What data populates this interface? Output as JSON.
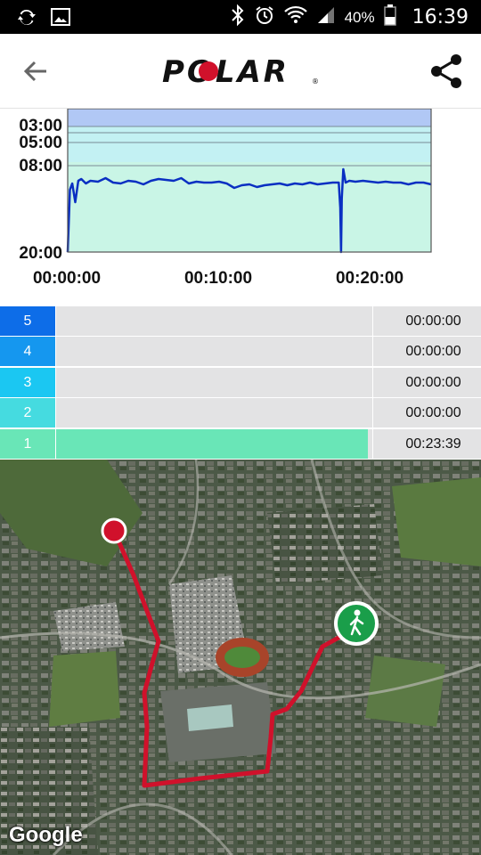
{
  "status_bar": {
    "battery": "40%",
    "time": "16:39",
    "icons": [
      "sync-icon",
      "image-icon",
      "bluetooth-icon",
      "alarm-icon",
      "wifi-icon",
      "signal-icon",
      "battery-icon"
    ]
  },
  "app_bar": {
    "brand": "POLAR",
    "back_icon": "arrow-left-icon",
    "share_icon": "share-icon"
  },
  "chart_data": {
    "type": "line",
    "y_tick_labels": [
      "03:00",
      "05:00",
      "08:00",
      "20:00"
    ],
    "x_tick_labels": [
      "00:00:00",
      "00:10:00",
      "00:20:00"
    ],
    "x_range_minutes": [
      0,
      24
    ],
    "colors": {
      "line": "#0a2fc2",
      "zone_top": "#b1c8f5",
      "zone_mid": "#c3f1f3",
      "zone_low": "#c9f5e6"
    },
    "series": [
      {
        "x_min": [
          0,
          0.15,
          0.3,
          0.5,
          0.7,
          0.9,
          1.2,
          1.5,
          2.0,
          2.5,
          3.0,
          3.5,
          4.0,
          4.5,
          5.0,
          5.5,
          6.0,
          6.5,
          7.0,
          7.5,
          8.0,
          8.5,
          9.0,
          9.5,
          10.0,
          10.5,
          11.0,
          11.5,
          12.0,
          12.5,
          13.0,
          13.5,
          14.0,
          14.5,
          15.0,
          15.5,
          16.0,
          16.5,
          17.0,
          17.5,
          17.9,
          18.0,
          18.05,
          18.1,
          18.2,
          18.35,
          18.6,
          19.0,
          19.5,
          20.0,
          20.5,
          21.0,
          21.5,
          22.0,
          22.5,
          23.0,
          23.5,
          24.0
        ],
        "y_level": [
          0.0,
          0.7,
          0.77,
          0.56,
          0.8,
          0.82,
          0.77,
          0.8,
          0.79,
          0.83,
          0.78,
          0.77,
          0.8,
          0.79,
          0.76,
          0.8,
          0.82,
          0.81,
          0.8,
          0.83,
          0.77,
          0.79,
          0.78,
          0.78,
          0.79,
          0.77,
          0.72,
          0.75,
          0.76,
          0.73,
          0.75,
          0.76,
          0.77,
          0.75,
          0.77,
          0.76,
          0.78,
          0.76,
          0.77,
          0.78,
          0.78,
          0.5,
          0.0,
          0.6,
          0.93,
          0.78,
          0.8,
          0.79,
          0.8,
          0.79,
          0.78,
          0.79,
          0.78,
          0.78,
          0.76,
          0.78,
          0.78,
          0.76
        ]
      }
    ]
  },
  "zones": [
    {
      "label": "5",
      "time": "00:00:00",
      "fill": 0.0,
      "color": "#0d6de8"
    },
    {
      "label": "4",
      "time": "00:00:00",
      "fill": 0.0,
      "color": "#1597ef"
    },
    {
      "label": "3",
      "time": "00:00:00",
      "fill": 0.0,
      "color": "#1bc7f2"
    },
    {
      "label": "2",
      "time": "00:00:00",
      "fill": 0.0,
      "color": "#45dbe0"
    },
    {
      "label": "1",
      "time": "00:23:39",
      "fill": 0.985,
      "color": "#69e6b7"
    }
  ],
  "map": {
    "attribution": "Google",
    "route_color": "#d0112b",
    "start_marker_icon": "walking-person-icon",
    "end_marker_color": "#d0112b"
  }
}
